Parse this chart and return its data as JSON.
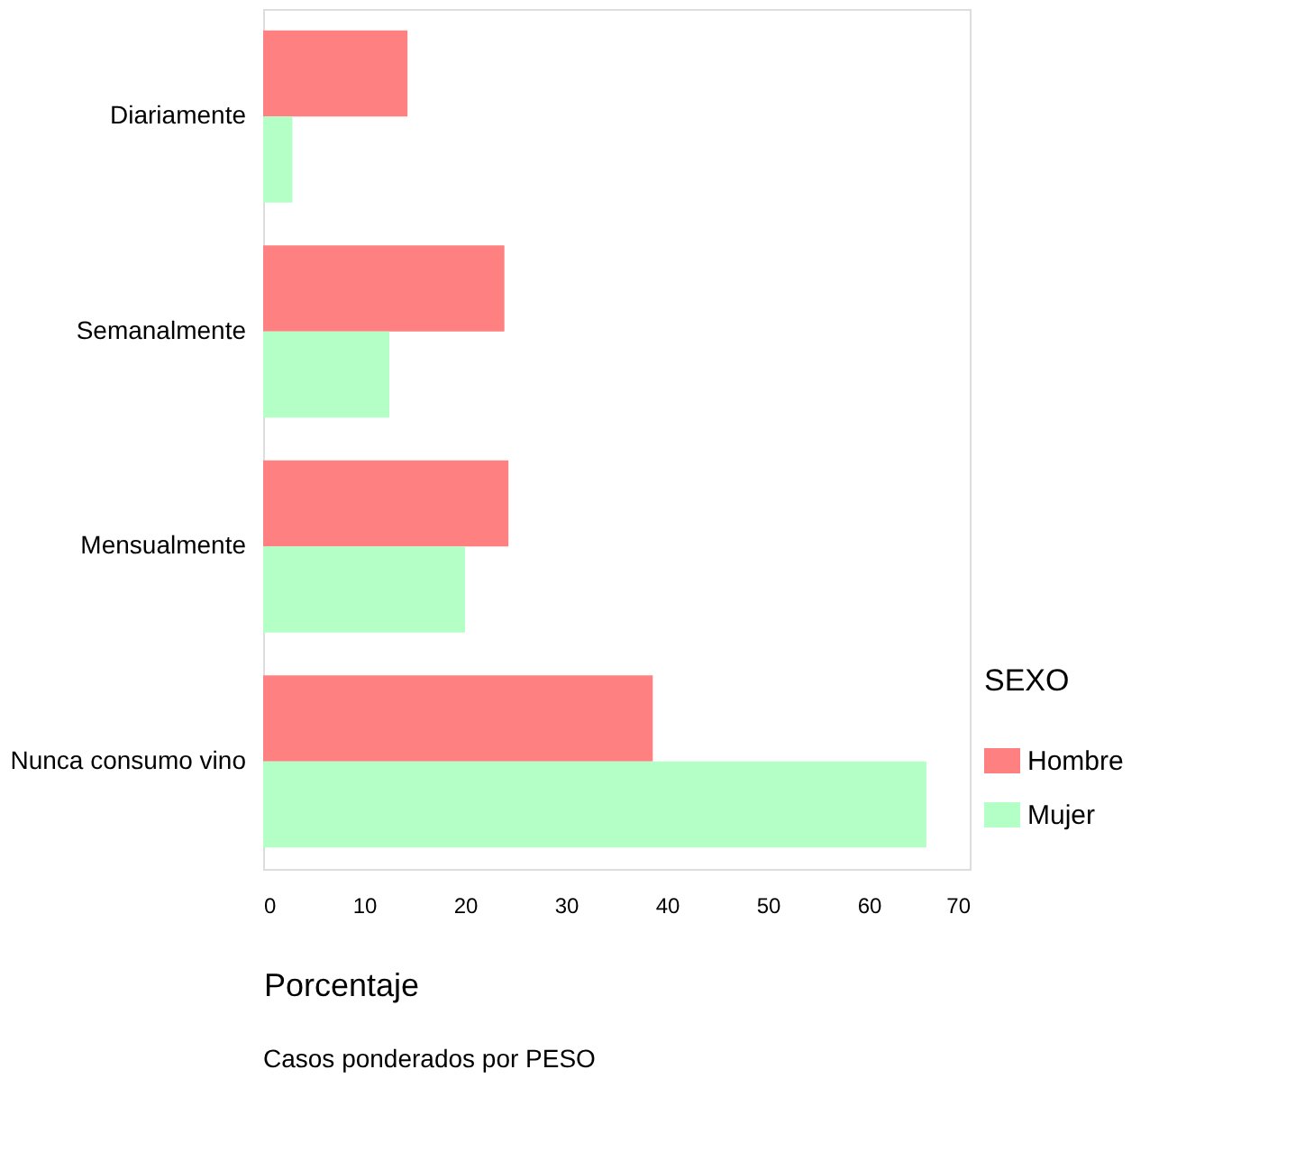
{
  "chart_data": {
    "type": "bar",
    "orientation": "horizontal",
    "categories": [
      "Diariamente",
      "Semanalmente",
      "Mensualmente",
      "Nunca consumo vino"
    ],
    "series": [
      {
        "name": "Hombre",
        "color": "#ff8080",
        "values": [
          14.3,
          23.9,
          24.3,
          38.6
        ]
      },
      {
        "name": "Mujer",
        "color": "#b3ffc6",
        "values": [
          2.9,
          12.5,
          20.0,
          65.7
        ]
      }
    ],
    "xlim": [
      0,
      70
    ],
    "xticks": [
      0,
      10,
      20,
      30,
      40,
      50,
      60,
      70
    ],
    "xlabel": "Porcentaje",
    "legend_title": "SEXO",
    "legend": "right",
    "grid": false,
    "annotations": [
      "Casos ponderados por PESO"
    ]
  }
}
